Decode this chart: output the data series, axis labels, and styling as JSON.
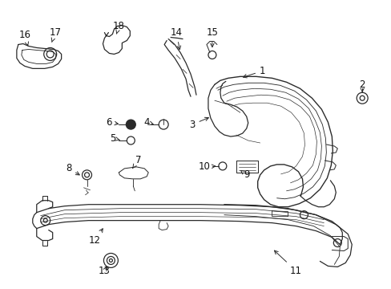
{
  "bg_color": "#ffffff",
  "fig_width": 4.89,
  "fig_height": 3.6,
  "dpi": 100,
  "line_color": "#2a2a2a",
  "line_width": 0.9,
  "font_size": 8.5,
  "label_color": "#111111"
}
